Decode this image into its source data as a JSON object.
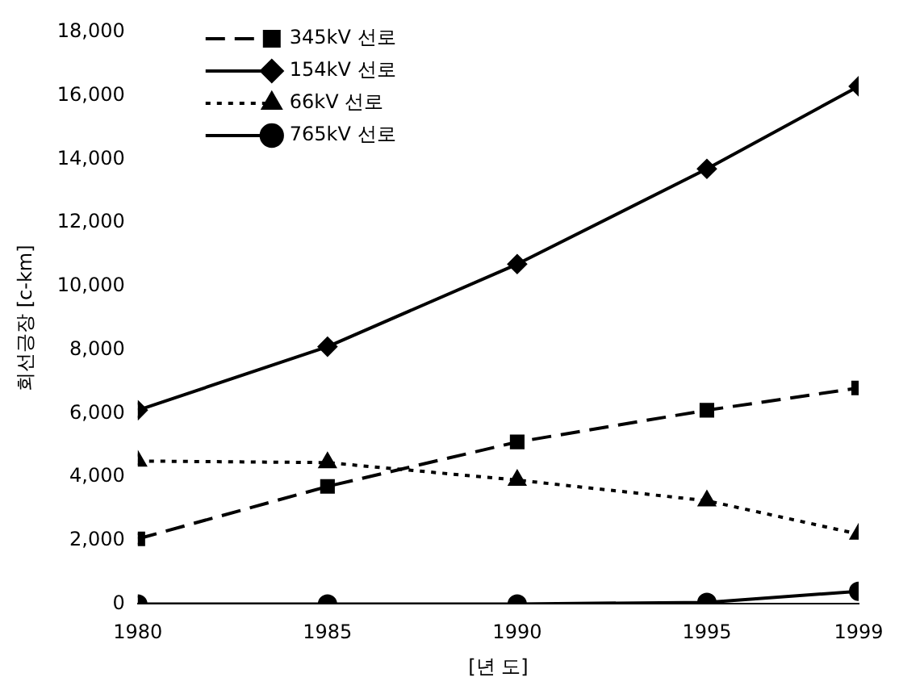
{
  "chart_data": {
    "type": "line",
    "xlabel": "[년 도]",
    "ylabel": "회선긍장 [c-km]",
    "x": [
      1980,
      1985,
      1990,
      1995,
      1999
    ],
    "xlim": [
      1980,
      1999
    ],
    "xticks": [
      1980,
      1985,
      1990,
      1995,
      1999
    ],
    "ylim": [
      0,
      18000
    ],
    "yticks": [
      0,
      {
        "value": 2000,
        "label": "2,000"
      },
      {
        "value": 4000,
        "label": "4,000"
      },
      {
        "value": 6000,
        "label": "6,000"
      },
      {
        "value": 8000,
        "label": "8,000"
      },
      {
        "value": 10000,
        "label": "10,000"
      },
      {
        "value": 12000,
        "label": "12,000"
      },
      {
        "value": 14000,
        "label": "14,000"
      },
      {
        "value": 16000,
        "label": "16,000"
      },
      {
        "value": 18000,
        "label": "18,000"
      }
    ],
    "grid": false,
    "legend": "top left",
    "series": [
      {
        "name": "345kV 선로",
        "color": "#000000",
        "marker": "square",
        "line_style": "dashed",
        "values": [
          2050,
          3700,
          5100,
          6100,
          6800
        ]
      },
      {
        "name": "154kV 선로",
        "color": "#000000",
        "marker": "diamond",
        "line_style": "solid",
        "values": [
          6100,
          8100,
          10700,
          13700,
          16300
        ]
      },
      {
        "name": "66kV 선로",
        "color": "#000000",
        "marker": "triangle",
        "line_style": "dotted",
        "values": [
          4500,
          4450,
          3900,
          3250,
          2200
        ]
      },
      {
        "name": "765kV 선로",
        "color": "#000000",
        "marker": "circle",
        "line_style": "solid",
        "values": [
          0,
          0,
          0,
          50,
          400
        ]
      }
    ]
  }
}
